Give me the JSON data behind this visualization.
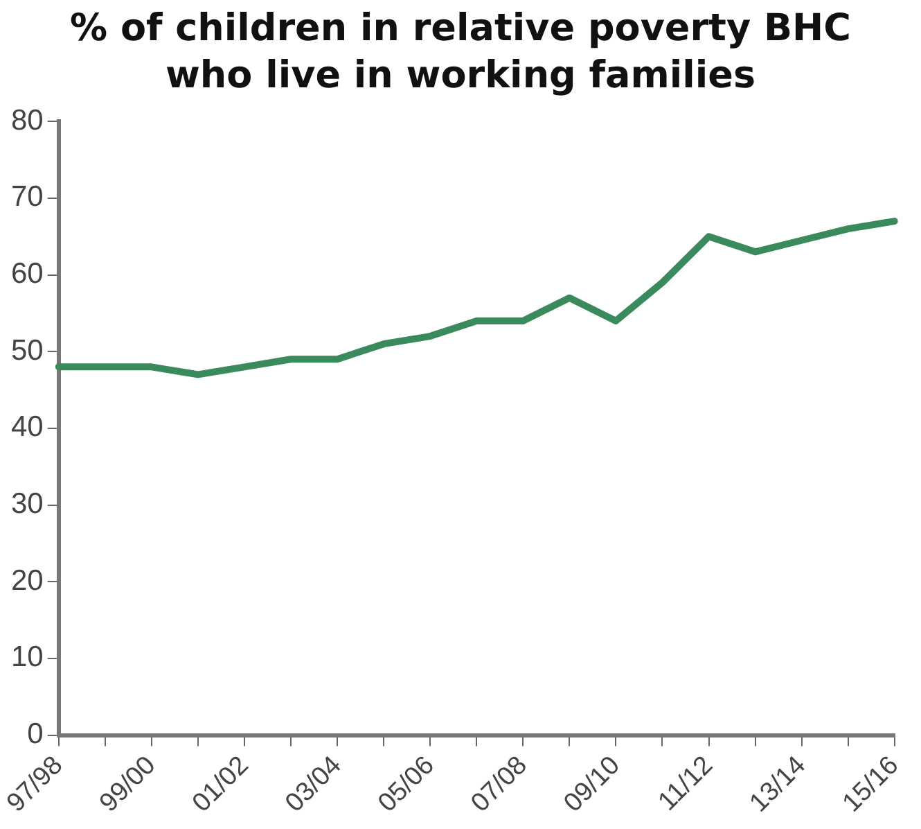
{
  "chart_data": {
    "type": "line",
    "title": "% of children in relative poverty BHC\nwho live in working families",
    "categories": [
      "97/98",
      null,
      "99/00",
      null,
      "01/02",
      null,
      "03/04",
      null,
      "05/06",
      null,
      "07/08",
      null,
      "09/10",
      null,
      "11/12",
      null,
      "13/14",
      null,
      "15/16"
    ],
    "series": [
      {
        "color": "#3a8a5e",
        "values": [
          48,
          48,
          48,
          47,
          48,
          49,
          49,
          51,
          52,
          54,
          54,
          57,
          54,
          59,
          65,
          63,
          64.5,
          66,
          67
        ]
      }
    ],
    "ylim": [
      0,
      80
    ],
    "yticks": [
      0,
      10,
      20,
      30,
      40,
      50,
      60,
      70,
      80
    ],
    "grid": false,
    "legend": false,
    "marker": "none"
  }
}
